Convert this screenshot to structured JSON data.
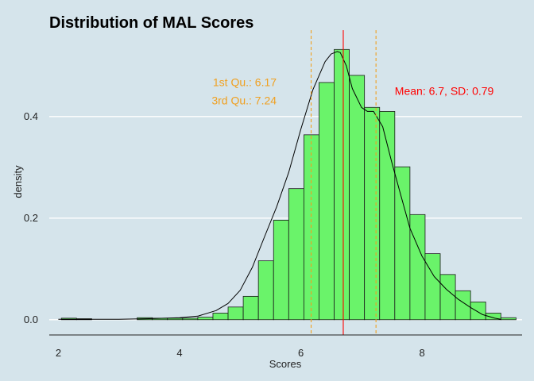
{
  "chart_data": {
    "type": "histogram",
    "title": "Distribution of MAL Scores",
    "xlabel": "Scores",
    "ylabel": "density",
    "xlim": [
      1.85,
      9.65
    ],
    "ylim": [
      -0.03,
      0.57
    ],
    "x_ticks": [
      2,
      4,
      6,
      8
    ],
    "x_tick_labels": [
      "2",
      "4",
      "6",
      "8"
    ],
    "y_ticks": [
      0.0,
      0.2,
      0.4
    ],
    "y_tick_labels": [
      "0.0",
      "0.2",
      "0.4"
    ],
    "grid": "horizontal",
    "bin_width": 0.25,
    "bins": [
      {
        "x0": 2.05,
        "density": 0.003
      },
      {
        "x0": 2.3,
        "density": 0.002
      },
      {
        "x0": 3.3,
        "density": 0.004
      },
      {
        "x0": 3.55,
        "density": 0.003
      },
      {
        "x0": 3.8,
        "density": 0.003
      },
      {
        "x0": 4.05,
        "density": 0.003
      },
      {
        "x0": 4.3,
        "density": 0.005
      },
      {
        "x0": 4.55,
        "density": 0.013
      },
      {
        "x0": 4.8,
        "density": 0.025
      },
      {
        "x0": 5.05,
        "density": 0.046
      },
      {
        "x0": 5.3,
        "density": 0.116
      },
      {
        "x0": 5.55,
        "density": 0.196
      },
      {
        "x0": 5.8,
        "density": 0.258
      },
      {
        "x0": 6.05,
        "density": 0.364
      },
      {
        "x0": 6.3,
        "density": 0.467
      },
      {
        "x0": 6.55,
        "density": 0.532
      },
      {
        "x0": 6.8,
        "density": 0.481
      },
      {
        "x0": 7.05,
        "density": 0.418
      },
      {
        "x0": 7.3,
        "density": 0.41
      },
      {
        "x0": 7.55,
        "density": 0.301
      },
      {
        "x0": 7.8,
        "density": 0.207
      },
      {
        "x0": 8.05,
        "density": 0.13
      },
      {
        "x0": 8.3,
        "density": 0.089
      },
      {
        "x0": 8.55,
        "density": 0.057
      },
      {
        "x0": 8.8,
        "density": 0.035
      },
      {
        "x0": 9.05,
        "density": 0.013
      },
      {
        "x0": 9.3,
        "density": 0.004
      }
    ],
    "density_curve": {
      "x": [
        2.0,
        2.5,
        3.0,
        3.5,
        4.0,
        4.3,
        4.6,
        4.8,
        5.0,
        5.2,
        5.4,
        5.6,
        5.8,
        6.0,
        6.2,
        6.4,
        6.5,
        6.6,
        6.65,
        6.75,
        6.85,
        7.0,
        7.1,
        7.2,
        7.35,
        7.5,
        7.65,
        7.8,
        8.0,
        8.2,
        8.4,
        8.6,
        8.8,
        9.0,
        9.2,
        9.3
      ],
      "y": [
        0.001,
        0.001,
        0.001,
        0.002,
        0.004,
        0.007,
        0.018,
        0.032,
        0.058,
        0.103,
        0.163,
        0.222,
        0.29,
        0.375,
        0.453,
        0.508,
        0.523,
        0.528,
        0.526,
        0.5,
        0.455,
        0.418,
        0.41,
        0.41,
        0.38,
        0.31,
        0.245,
        0.18,
        0.125,
        0.085,
        0.06,
        0.04,
        0.024,
        0.01,
        0.003,
        0.001
      ]
    },
    "vlines": [
      {
        "name": "1st Qu.",
        "x": 6.17,
        "color": "#f0a020",
        "style": "dashed"
      },
      {
        "name": "mean",
        "x": 6.7,
        "color": "#ff0000",
        "style": "solid"
      },
      {
        "name": "3rd Qu.",
        "x": 7.24,
        "color": "#f0a020",
        "style": "dashed"
      }
    ],
    "annotations": [
      {
        "text": "1st Qu.: 6.17",
        "color": "#f0a020",
        "anchor_x": 5.6,
        "anchor_y": 0.46,
        "align": "end"
      },
      {
        "text": "3rd Qu.: 7.24",
        "color": "#f0a020",
        "anchor_x": 5.6,
        "anchor_y": 0.424,
        "align": "end"
      },
      {
        "text": "Mean: 6.7, SD: 0.79",
        "color": "#ff0000",
        "anchor_x": 7.55,
        "anchor_y": 0.443,
        "align": "start"
      }
    ],
    "colors": {
      "background": "#d5e4eb",
      "bar_fill": "#6af36a",
      "bar_stroke": "#1a1a1a",
      "grid": "#ffffff",
      "curve": "#000000"
    }
  }
}
